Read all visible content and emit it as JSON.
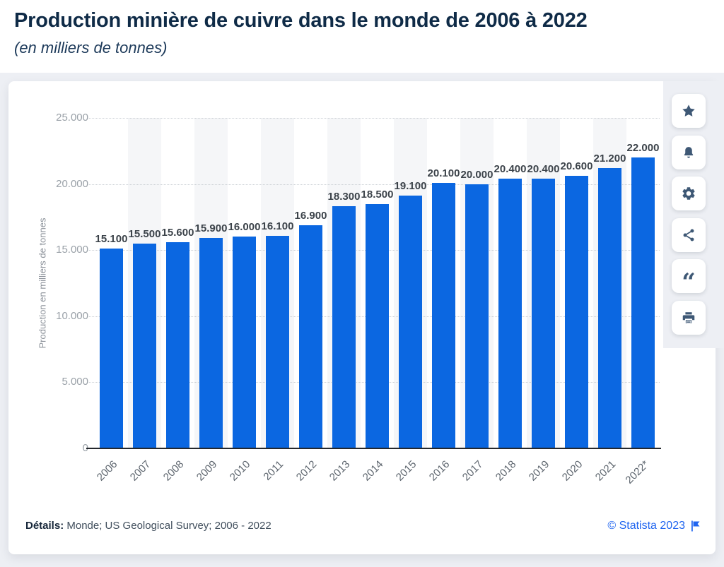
{
  "header": {
    "title": "Production minière de cuivre dans le monde de 2006 à 2022",
    "subtitle": "(en milliers de tonnes)"
  },
  "chart_data": {
    "type": "bar",
    "title": "Production minière de cuivre dans le monde de 2006 à 2022",
    "xlabel": "",
    "ylabel": "Production en milliers de tonnes",
    "categories": [
      "2006",
      "2007",
      "2008",
      "2009",
      "2010",
      "2011",
      "2012",
      "2013",
      "2014",
      "2015",
      "2016",
      "2017",
      "2018",
      "2019",
      "2020",
      "2021",
      "2022*"
    ],
    "values": [
      15100,
      15500,
      15600,
      15900,
      16000,
      16100,
      16900,
      18300,
      18500,
      19100,
      20100,
      20000,
      20400,
      20400,
      20600,
      21200,
      22000
    ],
    "value_labels": [
      "15.100",
      "15.500",
      "15.600",
      "15.900",
      "16.000",
      "16.100",
      "16.900",
      "18.300",
      "18.500",
      "19.100",
      "20.100",
      "20.000",
      "20.400",
      "20.400",
      "20.600",
      "21.200",
      "22.000"
    ],
    "ylim": [
      0,
      25000
    ],
    "ytick_step": 5000,
    "ytick_labels": [
      "0",
      "5.000",
      "10.000",
      "15.000",
      "20.000",
      "25.000"
    ],
    "grid": "horizontal-dotted",
    "legend": "none",
    "bar_color": "#0b67e1",
    "stripe_color": "#f5f6f8"
  },
  "toolbar": {
    "buttons": [
      {
        "name": "favorite",
        "icon": "star-icon"
      },
      {
        "name": "notifications",
        "icon": "bell-icon"
      },
      {
        "name": "settings",
        "icon": "gear-icon"
      },
      {
        "name": "share",
        "icon": "share-icon"
      },
      {
        "name": "cite",
        "icon": "quote-icon"
      },
      {
        "name": "print",
        "icon": "printer-icon"
      }
    ],
    "icon_color": "#3e5875"
  },
  "footer": {
    "details_label": "Détails:",
    "details_text": " Monde; US Geological Survey; 2006 - 2022",
    "copyright": "© Statista 2023"
  },
  "colors": {
    "title": "#0f2b47",
    "bar": "#0b67e1",
    "stage_background": "#edeff4",
    "link_blue": "#2065f0",
    "axis_tick": "#9aa1a8"
  }
}
